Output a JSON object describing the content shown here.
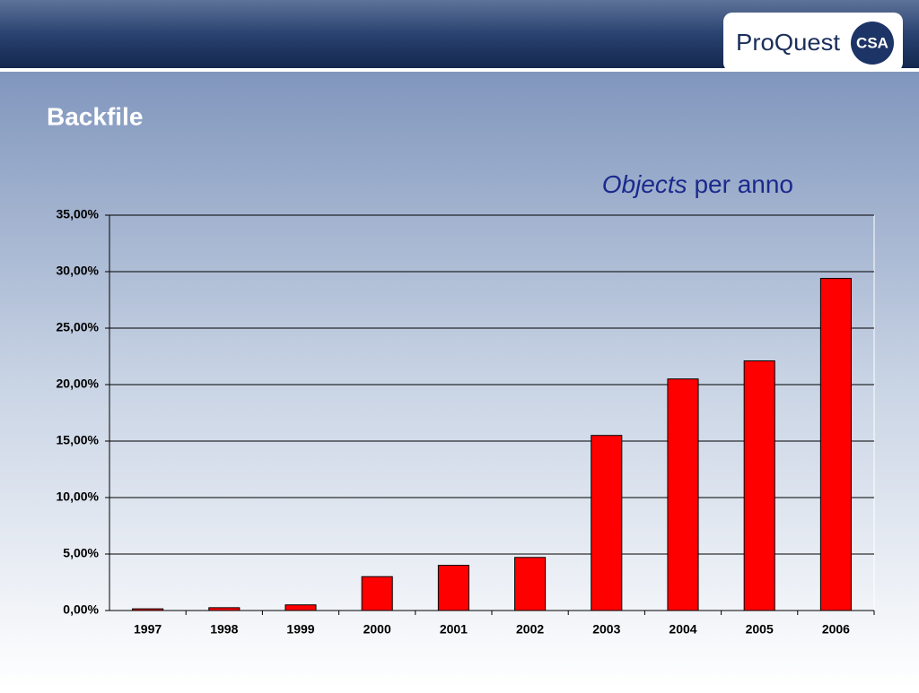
{
  "header": {
    "title": "Backfile",
    "logo": "ProQuest",
    "logo_badge": "CSA"
  },
  "chart_data": {
    "type": "bar",
    "title_italic": "Objects",
    "title": "per anno",
    "categories": [
      "1997",
      "1998",
      "1999",
      "2000",
      "2001",
      "2002",
      "2003",
      "2004",
      "2005",
      "2006"
    ],
    "values": [
      0.15,
      0.25,
      0.5,
      3.0,
      4.0,
      4.7,
      15.5,
      20.5,
      22.1,
      29.4
    ],
    "color": "#ff0000",
    "ylim": [
      0,
      35
    ],
    "yticks": [
      {
        "value": 0,
        "label": "0,00%"
      },
      {
        "value": 5,
        "label": "5,00%"
      },
      {
        "value": 10,
        "label": "10,00%"
      },
      {
        "value": 15,
        "label": "15,00%"
      },
      {
        "value": 20,
        "label": "20,00%"
      },
      {
        "value": 25,
        "label": "25,00%"
      },
      {
        "value": 30,
        "label": "30,00%"
      },
      {
        "value": 35,
        "label": "35,00%"
      }
    ],
    "grid": true
  }
}
